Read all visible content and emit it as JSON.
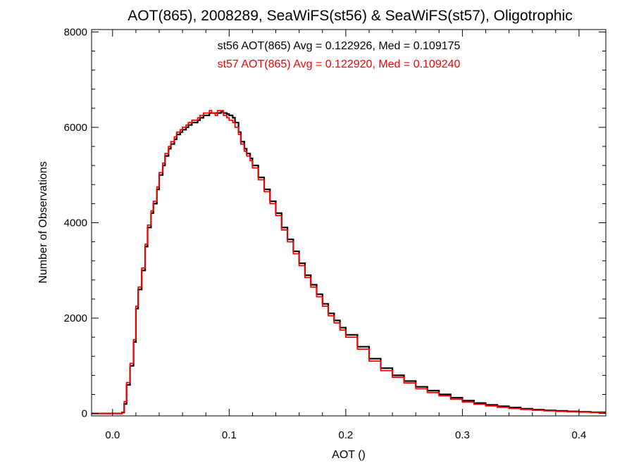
{
  "colors": {
    "st56": "#000000",
    "st57": "#ff0000",
    "axes": "#000000",
    "background": "#ffffff"
  },
  "chart_data": {
    "type": "line",
    "title": "AOT(865), 2008289, SeaWiFS(st56) & SeaWiFS(st57), Oligotrophic",
    "xlabel": "AOT ()",
    "ylabel": "Number of Observations",
    "xlim": [
      -0.018,
      0.423
    ],
    "ylim": [
      -50,
      8050
    ],
    "xticks": [
      0.0,
      0.1,
      0.2,
      0.3,
      0.4
    ],
    "xtick_labels": [
      "0.0",
      "0.1",
      "0.2",
      "0.3",
      "0.4"
    ],
    "yticks": [
      0,
      2000,
      4000,
      6000,
      8000
    ],
    "ytick_labels": [
      "0",
      "2000",
      "4000",
      "6000",
      "8000"
    ],
    "grid": false,
    "step": true,
    "annotations": [
      {
        "text": "st56 AOT(865) Avg = 0.122926, Med = 0.109175",
        "color": "#000000"
      },
      {
        "text": "st57 AOT(865) Avg = 0.122920, Med = 0.109240",
        "color": "#ff0000"
      }
    ],
    "series": [
      {
        "color": "#000000",
        "x": [
          -0.018,
          0.0,
          0.005,
          0.008,
          0.01,
          0.012,
          0.015,
          0.018,
          0.02,
          0.022,
          0.025,
          0.028,
          0.03,
          0.033,
          0.035,
          0.038,
          0.04,
          0.043,
          0.045,
          0.048,
          0.05,
          0.053,
          0.055,
          0.058,
          0.06,
          0.063,
          0.065,
          0.068,
          0.07,
          0.073,
          0.075,
          0.078,
          0.08,
          0.083,
          0.085,
          0.088,
          0.09,
          0.093,
          0.095,
          0.098,
          0.1,
          0.103,
          0.105,
          0.108,
          0.11,
          0.113,
          0.115,
          0.118,
          0.12,
          0.125,
          0.13,
          0.135,
          0.14,
          0.145,
          0.15,
          0.155,
          0.16,
          0.165,
          0.17,
          0.175,
          0.18,
          0.185,
          0.19,
          0.195,
          0.2,
          0.21,
          0.22,
          0.23,
          0.24,
          0.25,
          0.26,
          0.27,
          0.28,
          0.29,
          0.3,
          0.31,
          0.32,
          0.33,
          0.34,
          0.35,
          0.36,
          0.37,
          0.38,
          0.39,
          0.4,
          0.41,
          0.423
        ],
        "y": [
          0,
          0,
          0,
          20,
          200,
          600,
          1000,
          1500,
          2200,
          2600,
          3000,
          3500,
          3900,
          4200,
          4400,
          4700,
          5000,
          5200,
          5400,
          5550,
          5650,
          5750,
          5850,
          5900,
          5950,
          6000,
          6050,
          6100,
          6100,
          6150,
          6200,
          6250,
          6250,
          6300,
          6300,
          6300,
          6300,
          6320,
          6300,
          6280,
          6250,
          6200,
          6100,
          5900,
          5700,
          5550,
          5450,
          5350,
          5200,
          4950,
          4700,
          4450,
          4200,
          3900,
          3650,
          3400,
          3150,
          2900,
          2700,
          2500,
          2300,
          2100,
          1950,
          1800,
          1650,
          1400,
          1150,
          950,
          800,
          680,
          560,
          480,
          400,
          330,
          270,
          220,
          180,
          150,
          125,
          100,
          80,
          65,
          55,
          45,
          35,
          25,
          18
        ]
      },
      {
        "color": "#ff0000",
        "x": [
          -0.018,
          0.0,
          0.005,
          0.008,
          0.01,
          0.012,
          0.015,
          0.018,
          0.02,
          0.022,
          0.025,
          0.028,
          0.03,
          0.033,
          0.035,
          0.038,
          0.04,
          0.043,
          0.045,
          0.048,
          0.05,
          0.053,
          0.055,
          0.058,
          0.06,
          0.063,
          0.065,
          0.068,
          0.07,
          0.073,
          0.075,
          0.078,
          0.08,
          0.083,
          0.085,
          0.088,
          0.09,
          0.093,
          0.095,
          0.098,
          0.1,
          0.103,
          0.105,
          0.108,
          0.11,
          0.113,
          0.115,
          0.118,
          0.12,
          0.125,
          0.13,
          0.135,
          0.14,
          0.145,
          0.15,
          0.155,
          0.16,
          0.165,
          0.17,
          0.175,
          0.18,
          0.185,
          0.19,
          0.195,
          0.2,
          0.21,
          0.22,
          0.23,
          0.24,
          0.25,
          0.26,
          0.27,
          0.28,
          0.29,
          0.3,
          0.31,
          0.32,
          0.33,
          0.34,
          0.35,
          0.36,
          0.37,
          0.38,
          0.39,
          0.4,
          0.41,
          0.423
        ],
        "y": [
          0,
          0,
          0,
          30,
          250,
          650,
          1050,
          1550,
          2250,
          2650,
          3050,
          3550,
          3950,
          4250,
          4450,
          4750,
          5050,
          5250,
          5450,
          5600,
          5700,
          5800,
          5900,
          5950,
          6000,
          6050,
          6100,
          6150,
          6150,
          6200,
          6250,
          6300,
          6300,
          6350,
          6300,
          6250,
          6350,
          6350,
          6250,
          6200,
          6150,
          6100,
          6000,
          5850,
          5650,
          5500,
          5400,
          5300,
          5150,
          4900,
          4650,
          4400,
          4150,
          3850,
          3600,
          3350,
          3100,
          2850,
          2650,
          2450,
          2250,
          2050,
          1900,
          1750,
          1600,
          1350,
          1100,
          900,
          760,
          640,
          520,
          440,
          370,
          300,
          240,
          195,
          160,
          130,
          105,
          85,
          68,
          55,
          45,
          35,
          28,
          20,
          12
        ]
      }
    ]
  }
}
